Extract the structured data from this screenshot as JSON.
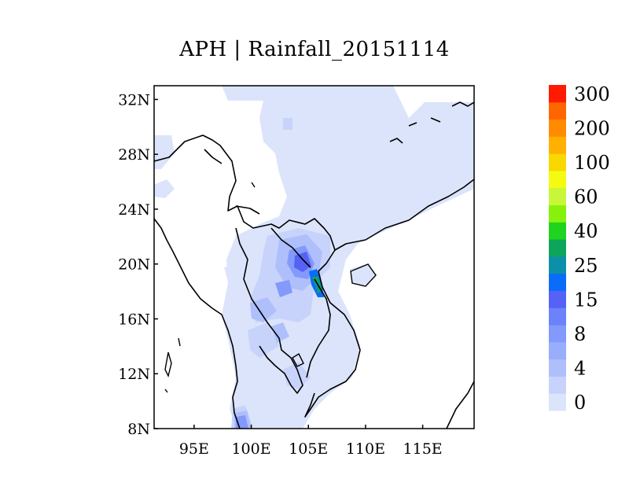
{
  "title": "APH | Rainfall_20151114",
  "map": {
    "lon_range": [
      91.5,
      119.5
    ],
    "lat_range": [
      8,
      33
    ],
    "lat_ticks": [
      {
        "value": 32,
        "label": "32N"
      },
      {
        "value": 28,
        "label": "28N"
      },
      {
        "value": 24,
        "label": "24N"
      },
      {
        "value": 20,
        "label": "20N"
      },
      {
        "value": 16,
        "label": "16N"
      },
      {
        "value": 12,
        "label": "12N"
      },
      {
        "value": 8,
        "label": "8N"
      }
    ],
    "lon_ticks": [
      {
        "value": 95,
        "label": "95E"
      },
      {
        "value": 100,
        "label": "100E"
      },
      {
        "value": 105,
        "label": "105E"
      },
      {
        "value": 110,
        "label": "110E"
      },
      {
        "value": 115,
        "label": "115E"
      }
    ]
  },
  "colorbar": {
    "colors": [
      "#dbe4fb",
      "#c7d3fb",
      "#aebffb",
      "#98aefb",
      "#8399fb",
      "#6b82fb",
      "#5562f5",
      "#0a6cfa",
      "#0c90aa",
      "#0da55c",
      "#1ed41e",
      "#86f20c",
      "#c8f73a",
      "#f5fb10",
      "#f8d800",
      "#ffb000",
      "#ff8c00",
      "#ff6600",
      "#ff1a00"
    ],
    "labels": [
      {
        "index": 0,
        "text": "0"
      },
      {
        "index": 2,
        "text": "4"
      },
      {
        "index": 4,
        "text": "8"
      },
      {
        "index": 6,
        "text": "15"
      },
      {
        "index": 8,
        "text": "25"
      },
      {
        "index": 10,
        "text": "40"
      },
      {
        "index": 12,
        "text": "60"
      },
      {
        "index": 14,
        "text": "100"
      },
      {
        "index": 16,
        "text": "200"
      },
      {
        "index": 18,
        "text": "300"
      }
    ]
  }
}
